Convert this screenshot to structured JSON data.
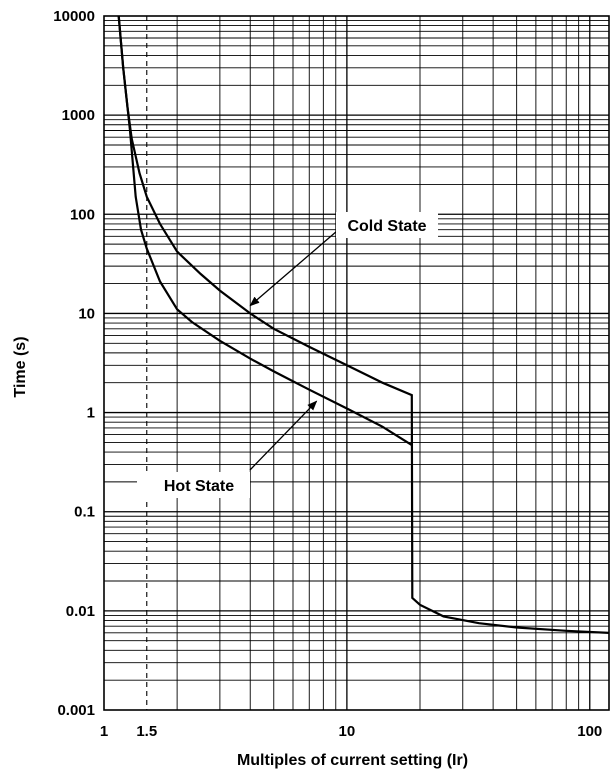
{
  "chart_data": {
    "type": "line",
    "title": "",
    "xlabel": "Multiples of current setting (Ir)",
    "ylabel": "Time (s)",
    "x_scale": "log",
    "y_scale": "log",
    "xlim": [
      1,
      120
    ],
    "ylim": [
      0.001,
      10000
    ],
    "grid": true,
    "x_ticks": [
      {
        "value": 1,
        "label": "1"
      },
      {
        "value": 1.5,
        "label": "1.5"
      },
      {
        "value": 10,
        "label": "10"
      },
      {
        "value": 100,
        "label": "100"
      }
    ],
    "y_ticks": [
      {
        "value": 0.001,
        "label": "0.001"
      },
      {
        "value": 0.01,
        "label": "0.01"
      },
      {
        "value": 0.1,
        "label": "0.1"
      },
      {
        "value": 1,
        "label": "1"
      },
      {
        "value": 10,
        "label": "10"
      },
      {
        "value": 100,
        "label": "100"
      },
      {
        "value": 1000,
        "label": "1000"
      },
      {
        "value": 10000,
        "label": "10000"
      }
    ],
    "reference_line": {
      "x": 1.5,
      "style": "dashed"
    },
    "series": [
      {
        "name": "Cold State",
        "points": [
          [
            1.15,
            10000
          ],
          [
            1.2,
            3000
          ],
          [
            1.25,
            1200
          ],
          [
            1.3,
            580
          ],
          [
            1.4,
            260
          ],
          [
            1.5,
            150
          ],
          [
            1.7,
            80
          ],
          [
            2.0,
            42
          ],
          [
            2.5,
            25
          ],
          [
            3,
            17
          ],
          [
            4,
            10
          ],
          [
            5,
            7.0
          ],
          [
            7,
            4.6
          ],
          [
            10,
            3.0
          ],
          [
            14,
            2.0
          ],
          [
            18.5,
            1.5
          ],
          [
            18.6,
            0.0135
          ],
          [
            20,
            0.0115
          ],
          [
            25,
            0.0088
          ],
          [
            35,
            0.0075
          ],
          [
            50,
            0.0068
          ],
          [
            80,
            0.0063
          ],
          [
            120,
            0.006
          ]
        ]
      },
      {
        "name": "Hot State",
        "points": [
          [
            1.15,
            10000
          ],
          [
            1.2,
            3000
          ],
          [
            1.25,
            1200
          ],
          [
            1.28,
            700
          ],
          [
            1.35,
            150
          ],
          [
            1.42,
            70
          ],
          [
            1.5,
            45
          ],
          [
            1.7,
            21
          ],
          [
            2.0,
            11
          ],
          [
            2.3,
            8.2
          ],
          [
            3,
            5.3
          ],
          [
            4,
            3.5
          ],
          [
            5,
            2.6
          ],
          [
            7,
            1.7
          ],
          [
            10,
            1.1
          ],
          [
            14,
            0.72
          ],
          [
            18.5,
            0.47
          ]
        ]
      }
    ],
    "annotations": [
      {
        "text": "Cold State",
        "target_series": "Cold State",
        "points_to": [
          4.0,
          12
        ]
      },
      {
        "text": "Hot State",
        "target_series": "Hot State",
        "points_to": [
          7.5,
          1.3
        ]
      }
    ]
  }
}
